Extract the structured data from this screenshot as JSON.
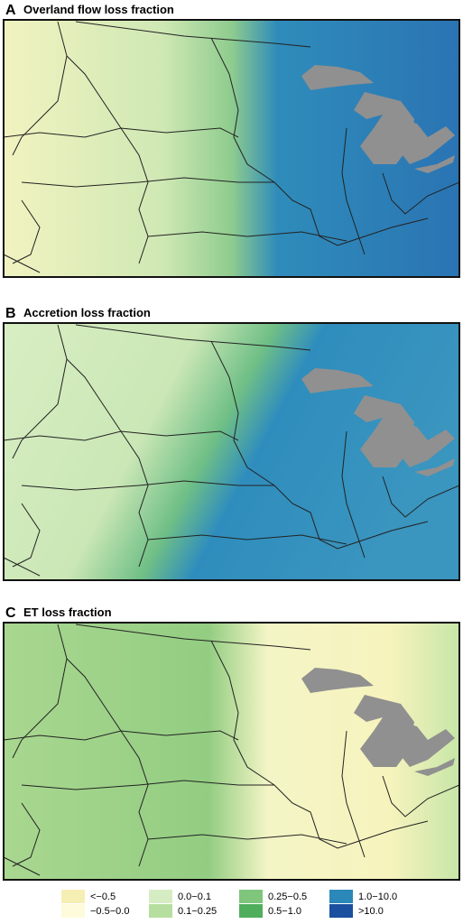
{
  "panels": [
    {
      "label": "A",
      "title": "Overland flow loss fraction"
    },
    {
      "label": "B",
      "title": "Accretion loss fraction"
    },
    {
      "label": "C",
      "title": "ET loss fraction"
    }
  ],
  "legend": {
    "items": [
      {
        "label": "<−0.5",
        "color": "#f6efb4"
      },
      {
        "label": "−0.5−0.0",
        "color": "#fdfbd9"
      },
      {
        "label": "0.0−0.1",
        "color": "#d6edc3"
      },
      {
        "label": "0.1−0.25",
        "color": "#b6de9f"
      },
      {
        "label": "0.25−0.5",
        "color": "#7fc57c"
      },
      {
        "label": "0.5−1.0",
        "color": "#4fae5c"
      },
      {
        "label": "1.0−10.0",
        "color": "#2b88b8"
      },
      {
        "label": ">10.0",
        "color": "#1b4f9f"
      }
    ]
  }
}
